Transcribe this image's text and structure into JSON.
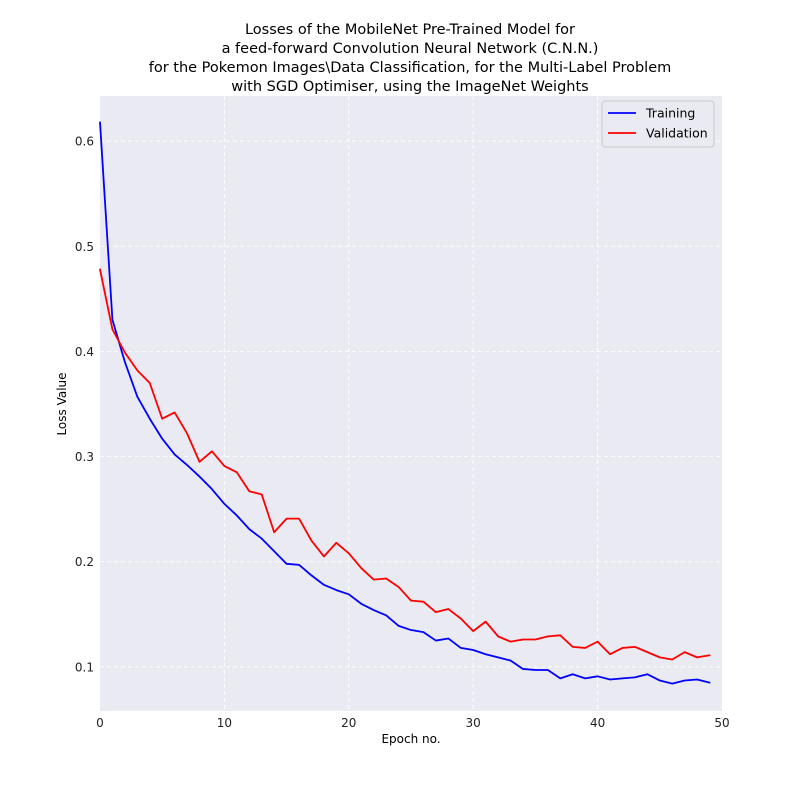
{
  "chart_data": {
    "type": "line",
    "title_lines": [
      "Losses of the MobileNet Pre-Trained Model for",
      "a feed-forward Convolution Neural Network (C.N.N.)",
      "for the Pokemon Images\\Data Classification, for the Multi-Label Problem",
      "with SGD Optimiser, using the ImageNet Weights"
    ],
    "xlabel": "Epoch no.",
    "ylabel": "Loss Value",
    "xlim": [
      0,
      50
    ],
    "ylim": [
      0.058,
      0.643
    ],
    "xticks": [
      0,
      10,
      20,
      30,
      40,
      50
    ],
    "yticks": [
      0.1,
      0.2,
      0.3,
      0.4,
      0.5,
      0.6
    ],
    "xtick_labels": [
      "0",
      "10",
      "20",
      "30",
      "40",
      "50"
    ],
    "ytick_labels": [
      "0.1",
      "0.2",
      "0.3",
      "0.4",
      "0.5",
      "0.6"
    ],
    "grid": true,
    "legend_position": "top-right",
    "x": [
      0,
      1,
      2,
      3,
      4,
      5,
      6,
      7,
      8,
      9,
      10,
      11,
      12,
      13,
      14,
      15,
      16,
      17,
      18,
      19,
      20,
      21,
      22,
      23,
      24,
      25,
      26,
      27,
      28,
      29,
      30,
      31,
      32,
      33,
      34,
      35,
      36,
      37,
      38,
      39,
      40,
      41,
      42,
      43,
      44,
      45,
      46,
      47,
      48,
      49
    ],
    "series": [
      {
        "name": "Training",
        "color": "#0000ff",
        "values": [
          0.618,
          0.43,
          0.39,
          0.357,
          0.336,
          0.317,
          0.302,
          0.292,
          0.281,
          0.269,
          0.255,
          0.244,
          0.231,
          0.222,
          0.21,
          0.198,
          0.197,
          0.187,
          0.178,
          0.173,
          0.169,
          0.16,
          0.154,
          0.149,
          0.139,
          0.135,
          0.133,
          0.125,
          0.127,
          0.118,
          0.116,
          0.112,
          0.109,
          0.106,
          0.098,
          0.097,
          0.097,
          0.089,
          0.093,
          0.089,
          0.091,
          0.088,
          0.089,
          0.09,
          0.093,
          0.087,
          0.084,
          0.087,
          0.088,
          0.085
        ]
      },
      {
        "name": "Validation",
        "color": "#ff0000",
        "values": [
          0.478,
          0.421,
          0.399,
          0.382,
          0.37,
          0.336,
          0.342,
          0.322,
          0.295,
          0.305,
          0.291,
          0.285,
          0.267,
          0.264,
          0.228,
          0.241,
          0.241,
          0.22,
          0.205,
          0.218,
          0.208,
          0.194,
          0.183,
          0.184,
          0.176,
          0.163,
          0.162,
          0.152,
          0.155,
          0.146,
          0.134,
          0.143,
          0.129,
          0.124,
          0.126,
          0.126,
          0.129,
          0.13,
          0.119,
          0.118,
          0.124,
          0.112,
          0.118,
          0.119,
          0.114,
          0.109,
          0.107,
          0.114,
          0.109,
          0.111
        ]
      }
    ],
    "colors": {
      "plot_background": "#eaeaf2",
      "grid": "#ffffff"
    }
  }
}
